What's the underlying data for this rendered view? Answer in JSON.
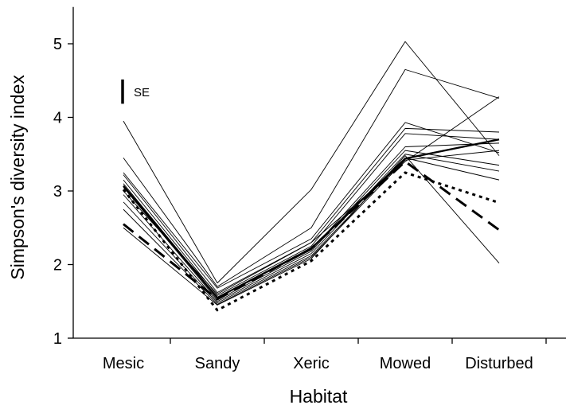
{
  "chart_data": {
    "type": "line",
    "title": "",
    "xlabel": "Habitat",
    "ylabel": "Simpson's diversity index",
    "categories": [
      "Mesic",
      "Sandy",
      "Xeric",
      "Mowed",
      "Disturbed"
    ],
    "ylim": [
      1,
      5.5
    ],
    "yticks": [
      1,
      2,
      3,
      4,
      5
    ],
    "grid": false,
    "legend": "none",
    "se_bar": {
      "label": "SE",
      "value": 0.33
    },
    "series": [
      {
        "style": "thin",
        "values": [
          3.95,
          1.75,
          3.02,
          5.03,
          3.48
        ]
      },
      {
        "style": "thin",
        "values": [
          3.45,
          1.7,
          2.5,
          4.65,
          4.26
        ]
      },
      {
        "style": "thin",
        "values": [
          3.25,
          1.68,
          2.35,
          3.93,
          3.52
        ]
      },
      {
        "style": "thin",
        "values": [
          3.22,
          1.62,
          2.3,
          3.85,
          3.8
        ]
      },
      {
        "style": "thin",
        "values": [
          3.15,
          1.58,
          2.25,
          3.78,
          3.7
        ]
      },
      {
        "style": "thin",
        "values": [
          3.1,
          1.55,
          2.2,
          3.6,
          3.65
        ]
      },
      {
        "style": "thin",
        "values": [
          3.05,
          1.52,
          2.18,
          3.55,
          3.35
        ]
      },
      {
        "style": "thin",
        "values": [
          2.95,
          1.5,
          2.15,
          3.5,
          3.27
        ]
      },
      {
        "style": "thin",
        "values": [
          2.85,
          1.48,
          2.12,
          3.45,
          3.15
        ]
      },
      {
        "style": "thin",
        "values": [
          2.75,
          1.46,
          2.1,
          3.42,
          3.55
        ]
      },
      {
        "style": "thin",
        "values": [
          2.5,
          1.45,
          2.08,
          3.48,
          2.02
        ]
      },
      {
        "style": "thin",
        "values": [
          3.0,
          1.6,
          2.3,
          3.4,
          4.28
        ]
      },
      {
        "style": "thick",
        "values": [
          3.07,
          1.55,
          2.22,
          3.44,
          3.7
        ]
      },
      {
        "style": "dashed",
        "values": [
          2.55,
          1.53,
          2.22,
          3.4,
          2.47
        ]
      },
      {
        "style": "dotted",
        "values": [
          3.02,
          1.38,
          2.05,
          3.25,
          2.84
        ]
      }
    ]
  }
}
